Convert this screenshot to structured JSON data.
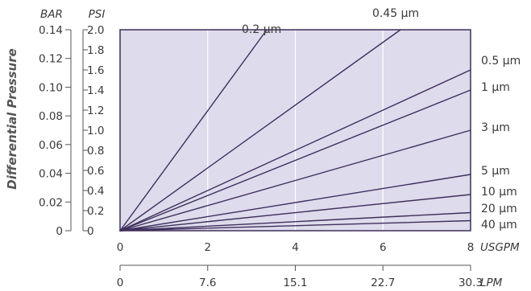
{
  "chart_data": {
    "type": "line",
    "ylabel": "Differential Pressure",
    "y_axes": [
      {
        "unit": "BAR",
        "ticks": [
          "0",
          "0.02",
          "0.04",
          "0.06",
          "0.08",
          "0.10",
          "0.12",
          "0.14"
        ],
        "range": [
          0,
          0.14
        ]
      },
      {
        "unit": "PSI",
        "ticks": [
          "0",
          "0.2",
          "0.4",
          "0.6",
          "0.8",
          "1.0",
          "1.2",
          "1.4",
          "1.6",
          "1.8",
          "2.0"
        ],
        "range": [
          0,
          2.0
        ]
      }
    ],
    "x_axes": [
      {
        "unit": "USGPM",
        "ticks": [
          "0",
          "2",
          "4",
          "6",
          "8"
        ],
        "range": [
          0,
          8
        ]
      },
      {
        "unit": "LPM",
        "ticks": [
          "0",
          "7.6",
          "15.1",
          "22.7",
          "30.3"
        ]
      }
    ],
    "xlim": [
      0,
      8
    ],
    "ylim_psi": [
      0,
      2.0
    ],
    "grid": true,
    "series": [
      {
        "name": "0.2 µm",
        "x": [
          0,
          3.35
        ],
        "y": [
          0,
          2.0
        ]
      },
      {
        "name": "0.45 µm",
        "x": [
          0,
          6.4
        ],
        "y": [
          0,
          2.0
        ]
      },
      {
        "name": "0.5 µm",
        "x": [
          0,
          8
        ],
        "y": [
          0,
          1.6
        ]
      },
      {
        "name": "1 µm",
        "x": [
          0,
          8
        ],
        "y": [
          0,
          1.4
        ]
      },
      {
        "name": "3 µm",
        "x": [
          0,
          8
        ],
        "y": [
          0,
          1.0
        ]
      },
      {
        "name": "5 µm",
        "x": [
          0,
          8
        ],
        "y": [
          0,
          0.56
        ]
      },
      {
        "name": "10 µm",
        "x": [
          0,
          8
        ],
        "y": [
          0,
          0.36
        ]
      },
      {
        "name": "20 µm",
        "x": [
          0,
          8
        ],
        "y": [
          0,
          0.18
        ]
      },
      {
        "name": "40 µm",
        "x": [
          0,
          8
        ],
        "y": [
          0,
          0.1
        ]
      }
    ],
    "colors": {
      "plot_bg": "#dddbec",
      "frame": "#3f2f5a",
      "series": "#3f2f5a",
      "grid": "#ffffff"
    }
  }
}
